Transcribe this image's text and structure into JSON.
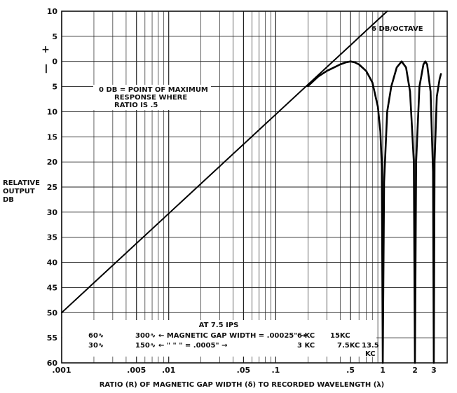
{
  "chart_data": {
    "type": "line",
    "title": "",
    "xlabel": "RATIO (R) OF MAGNETIC GAP WIDTH (δ) TO RECORDED WAVELENGTH (λ)",
    "ylabel": "RELATIVE OUTPUT DB",
    "ylabel_lines": [
      "RELATIVE",
      "OUTPUT",
      "DB"
    ],
    "x_scale": "log",
    "xlim": [
      0.001,
      4
    ],
    "ylim": [
      -10,
      60
    ],
    "y_direction": "down",
    "grid": true,
    "x_ticks": [
      {
        "value": 0.001,
        "label": ".001"
      },
      {
        "value": 0.005,
        "label": ".005"
      },
      {
        "value": 0.01,
        "label": ".01"
      },
      {
        "value": 0.05,
        "label": ".05"
      },
      {
        "value": 0.1,
        "label": ".1"
      },
      {
        "value": 0.5,
        "label": ".5"
      },
      {
        "value": 1,
        "label": "1"
      },
      {
        "value": 2,
        "label": "2"
      },
      {
        "value": 3,
        "label": "3"
      }
    ],
    "y_ticks": [
      {
        "value": -10,
        "label": "10"
      },
      {
        "value": -5,
        "label": "5"
      },
      {
        "value": 0,
        "label": "0"
      },
      {
        "value": 5,
        "label": "5"
      },
      {
        "value": 10,
        "label": "10"
      },
      {
        "value": 15,
        "label": "15"
      },
      {
        "value": 20,
        "label": "20"
      },
      {
        "value": 25,
        "label": "25"
      },
      {
        "value": 30,
        "label": "30"
      },
      {
        "value": 35,
        "label": "35"
      },
      {
        "value": 40,
        "label": "40"
      },
      {
        "value": 45,
        "label": "45"
      },
      {
        "value": 50,
        "label": "50"
      },
      {
        "value": 55,
        "label": "55"
      },
      {
        "value": 60,
        "label": "60"
      }
    ],
    "sign_labels": [
      "+",
      "—"
    ],
    "series": [
      {
        "x": [
          0.001,
          1.1
        ],
        "y": [
          50,
          -10
        ]
      },
      {
        "x": [
          0.2,
          0.25,
          0.3,
          0.35,
          0.4,
          0.45,
          0.5,
          0.55,
          0.6,
          0.7,
          0.8,
          0.9,
          0.95,
          0.98,
          1.0,
          1.03,
          1.1,
          1.2,
          1.35,
          1.5,
          1.65,
          1.8,
          1.95,
          2.0,
          2.05,
          2.2,
          2.4,
          2.5,
          2.6,
          2.8,
          2.95,
          3.0,
          3.05,
          3.2,
          3.4,
          3.5
        ],
        "y": [
          4.9,
          3.0,
          1.9,
          1.2,
          0.6,
          0.2,
          0.0,
          0.2,
          0.6,
          1.9,
          4.2,
          9.0,
          14.0,
          21.0,
          60.0,
          24.0,
          10.0,
          5.0,
          1.2,
          0.0,
          1.2,
          6.0,
          20.0,
          60.0,
          20.0,
          5.0,
          0.6,
          0.0,
          0.6,
          6.0,
          22.0,
          60.0,
          20.0,
          7.0,
          3.5,
          2.5
        ]
      }
    ],
    "annotations": {
      "slope": "6 DB/OCTAVE",
      "note_lines": [
        "0 DB = POINT OF MAXIMUM",
        "RESPONSE WHERE",
        "RATIO IS .5"
      ],
      "speed_title": "AT 7.5 IPS",
      "row1": {
        "left": "60∿",
        "low": "300∿",
        "text": "← MAGNETIC GAP WIDTH = .00025\" →",
        "kc1": "6 KC",
        "kc2": "15KC"
      },
      "row2": {
        "left": "30∿",
        "low": "150∿",
        "text": "←   \"      \"      \"   = .0005\" →",
        "kc1": "3 KC",
        "kc2": "7.5KC",
        "kc3_a": "13.5",
        "kc3_b": "KC"
      }
    }
  }
}
